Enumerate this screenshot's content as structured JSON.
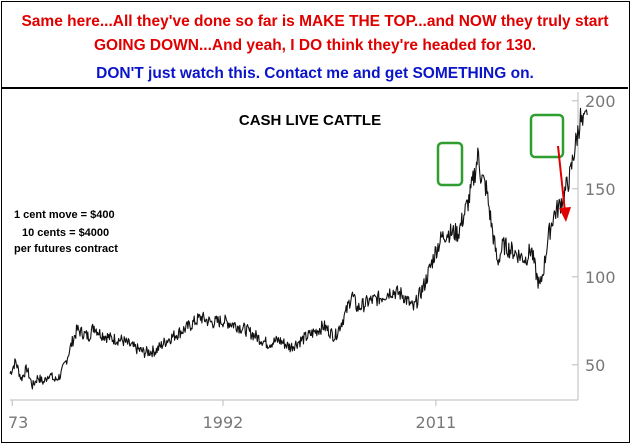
{
  "header": {
    "line1": "Same here...All they've done so far is MAKE THE TOP...and NOW they truly start GOING DOWN...And yeah, I DO think they're headed for 130.",
    "line2": "DON'T just watch this. Contact me and get SOMETHING on.",
    "line1_color": "#e00000",
    "line2_color": "#0a14c8"
  },
  "chart_data": {
    "type": "line",
    "title": "CASH LIVE CATTLE",
    "xlabel": "",
    "ylabel": "",
    "x_ticks": [
      "73",
      "1992",
      "2011"
    ],
    "y_ticks": [
      "200",
      "150",
      "100",
      "50"
    ],
    "ylim": [
      30,
      205
    ],
    "xlim": [
      1973,
      2023.5
    ],
    "y_axis_side": "right",
    "grid": false,
    "series": [
      {
        "x": [
          1973.0,
          1973.5,
          1974.0,
          1974.5,
          1975.0,
          1975.5,
          1976.0,
          1976.5,
          1977.0,
          1977.5,
          1978.0,
          1978.5,
          1979.0,
          1979.5,
          1980.0,
          1980.5,
          1981.0,
          1982.0,
          1983.0,
          1984.0,
          1985.0,
          1986.0,
          1987.0,
          1988.0,
          1989.0,
          1990.0,
          1991.0,
          1992.0,
          1993.0,
          1994.0,
          1995.0,
          1996.0,
          1997.0,
          1998.0,
          1999.0,
          2000.0,
          2001.0,
          2002.0,
          2003.0,
          2003.5,
          2004.0,
          2005.0,
          2006.0,
          2007.0,
          2008.0,
          2009.0,
          2010.0,
          2011.0,
          2011.5,
          2012.0,
          2013.0,
          2014.0,
          2014.5,
          2014.8,
          2015.0,
          2015.5,
          2016.0,
          2016.5,
          2017.0,
          2017.5,
          2018.0,
          2018.5,
          2019.0,
          2019.5,
          2020.0,
          2020.3,
          2020.7,
          2021.0,
          2021.5,
          2022.0,
          2022.5,
          2023.0,
          2023.3,
          2023.6,
          2023.9,
          2024.1,
          2024.3,
          2024.5
        ],
        "y": [
          45,
          52,
          42,
          48,
          38,
          43,
          40,
          45,
          41,
          44,
          52,
          62,
          70,
          68,
          66,
          72,
          68,
          65,
          64,
          60,
          57,
          58,
          64,
          68,
          72,
          77,
          74,
          75,
          73,
          70,
          66,
          62,
          64,
          60,
          64,
          68,
          72,
          66,
          80,
          90,
          82,
          86,
          88,
          92,
          90,
          82,
          96,
          115,
          122,
          125,
          125,
          145,
          160,
          170,
          158,
          150,
          128,
          108,
          118,
          116,
          114,
          112,
          110,
          116,
          100,
          94,
          108,
          122,
          135,
          140,
          148,
          158,
          170,
          180,
          190,
          185,
          188,
          192
        ]
      }
    ],
    "annotations": {
      "note_lines": [
        "1 cent move = $400",
        "10 cents = $4000",
        "per futures contract"
      ],
      "boxes_around": [
        "2014-2015 peak",
        "2024 peak"
      ],
      "arrow": "downward from latest peak",
      "box_color": "#2e9e2e",
      "arrow_color": "#e00000"
    }
  }
}
